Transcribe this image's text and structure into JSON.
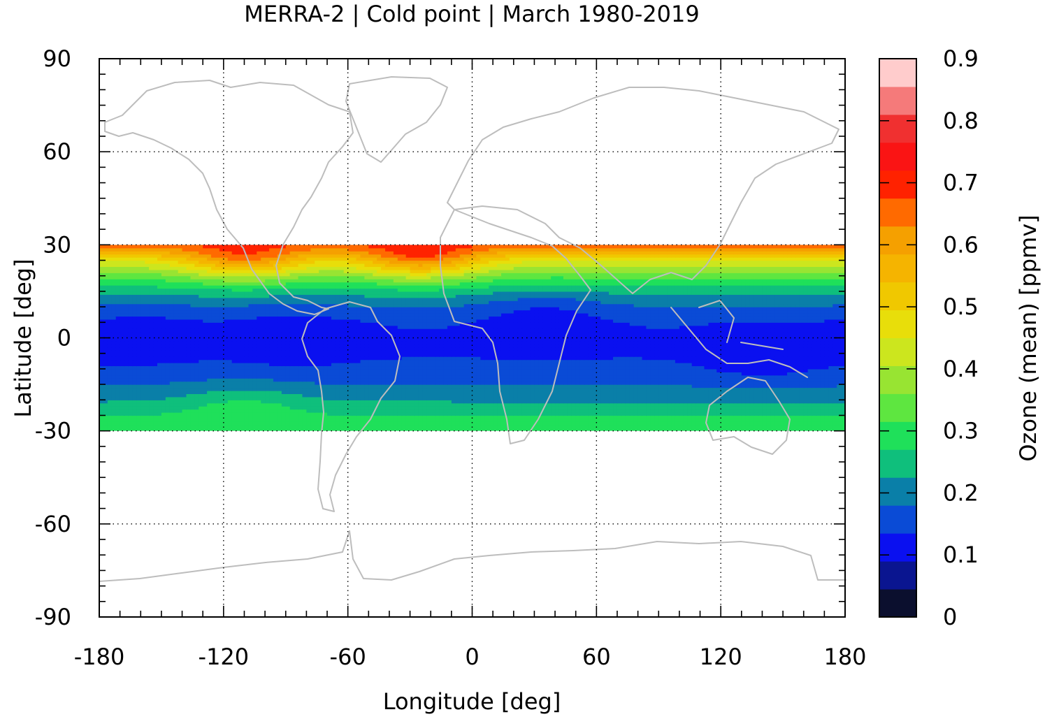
{
  "chart_data": {
    "type": "heatmap",
    "title": "MERRA-2 | Cold point | March 1980-2019",
    "xlabel": "Longitude [deg]",
    "ylabel": "Latitude [deg]",
    "colorbar_label": "Ozone (mean) [ppmv]",
    "xlim": [
      -180,
      180
    ],
    "ylim": [
      -90,
      90
    ],
    "data_lat_range": [
      -30,
      30
    ],
    "x_ticks": [
      -180,
      -120,
      -60,
      0,
      60,
      120,
      180
    ],
    "x_tick_labels": [
      "-180",
      "-120",
      "-60",
      "0",
      "60",
      "120",
      "180"
    ],
    "y_ticks": [
      90,
      60,
      30,
      0,
      -30,
      -60,
      -90
    ],
    "y_tick_labels": [
      "90",
      "60",
      "30",
      "0",
      "-30",
      "-60",
      "-90"
    ],
    "colorbar_ticks": [
      0,
      0.1,
      0.2,
      0.3,
      0.4,
      0.5,
      0.6,
      0.7,
      0.8,
      0.9
    ],
    "colorbar_tick_labels": [
      "0",
      "0.1",
      "0.2",
      "0.3",
      "0.4",
      "0.5",
      "0.6",
      "0.7",
      "0.8",
      "0.9"
    ],
    "colorbar_levels": [
      0,
      0.045,
      0.09,
      0.135,
      0.18,
      0.225,
      0.27,
      0.315,
      0.36,
      0.405,
      0.45,
      0.495,
      0.54,
      0.585,
      0.63,
      0.675,
      0.72,
      0.765,
      0.81,
      0.855,
      0.9
    ],
    "colorbar_colors": [
      "#0b0f2e",
      "#0a1590",
      "#0a10f0",
      "#0a4bd6",
      "#0a7fa8",
      "#0fbf7c",
      "#1fe05a",
      "#5ee640",
      "#98e432",
      "#cce61e",
      "#e8de0a",
      "#f0c800",
      "#f5b400",
      "#f5a000",
      "#ff6a00",
      "#ff2200",
      "#fa1414",
      "#f03030",
      "#f57a7a",
      "#ffcccc"
    ],
    "grid": true,
    "legend": "colorbar-right",
    "zonal_profile": {
      "lat": [
        -30,
        -25,
        -20,
        -15,
        -10,
        -5,
        0,
        5,
        10,
        15,
        20,
        25,
        30
      ],
      "ozone": [
        0.32,
        0.27,
        0.22,
        0.18,
        0.15,
        0.13,
        0.13,
        0.14,
        0.18,
        0.24,
        0.33,
        0.45,
        0.66
      ]
    },
    "features": [
      {
        "lon": -25,
        "lat": 29,
        "ozone": 0.72
      },
      {
        "lon": -110,
        "lat": 29,
        "ozone": 0.7
      },
      {
        "lon": 140,
        "lat": -5,
        "ozone": 0.1
      },
      {
        "lon": -85,
        "lat": 0,
        "ozone": 0.1
      },
      {
        "lon": 35,
        "lat": 5,
        "ozone": 0.11
      },
      {
        "lon": -160,
        "lat": 0,
        "ozone": 0.11
      },
      {
        "lon": -110,
        "lat": -25,
        "ozone": 0.3
      }
    ]
  }
}
